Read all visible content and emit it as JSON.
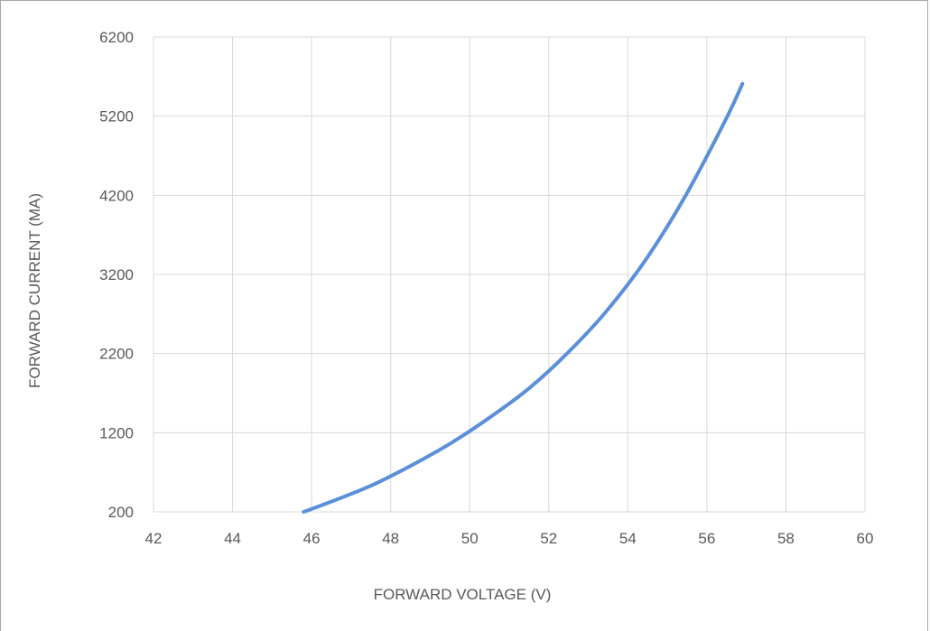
{
  "chart_data": {
    "type": "line",
    "title": "",
    "xlabel": "FORWARD VOLTAGE (V)",
    "ylabel": "FORWARD CURRENT  (MA)",
    "xlim": [
      42,
      60
    ],
    "ylim": [
      200,
      6200
    ],
    "x_ticks": [
      "42",
      "44",
      "46",
      "48",
      "50",
      "52",
      "54",
      "56",
      "58",
      "60"
    ],
    "y_ticks": [
      "200",
      "1200",
      "2200",
      "3200",
      "4200",
      "5200",
      "6200"
    ],
    "grid": true,
    "legend": "none",
    "series": [
      {
        "color": "#5b8fd9",
        "x": [
          45.8,
          46.5,
          47.5,
          48.5,
          49.5,
          50.5,
          51.5,
          52.5,
          53.5,
          54.5,
          55.5,
          56.5,
          56.9
        ],
        "y": [
          200,
          330,
          530,
          780,
          1060,
          1390,
          1760,
          2220,
          2760,
          3420,
          4230,
          5180,
          5610
        ]
      }
    ]
  }
}
